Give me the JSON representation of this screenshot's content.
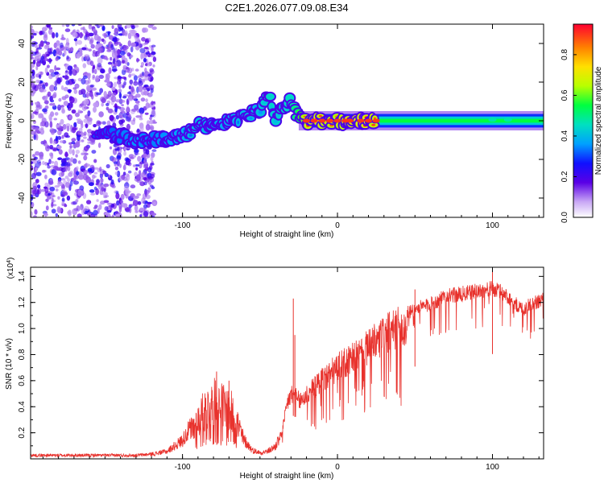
{
  "title": "C2E1.2026.077.09.08.E34",
  "colors": {
    "snr_line": "#e8322d",
    "axis": "#000000",
    "background": "#ffffff"
  },
  "chart_data": [
    {
      "type": "heatmap",
      "name": "spectrogram",
      "xlabel": "Height of straight line (km)",
      "ylabel": "Frequency (Hz)",
      "xlim": [
        -198,
        133
      ],
      "ylim": [
        -50,
        50
      ],
      "x_ticks": [
        -100,
        0,
        100
      ],
      "y_ticks": [
        -40,
        -20,
        0,
        20,
        40
      ],
      "colorbar": {
        "label": "Normalized spectral amplitude",
        "range": [
          0,
          0.95
        ],
        "ticks": [
          0.0,
          0.2,
          0.4,
          0.6,
          0.8
        ]
      },
      "ridge": {
        "x": [
          -150,
          -140,
          -130,
          -120,
          -110,
          -100,
          -90,
          -80,
          -70,
          -60,
          -50,
          -45,
          -40,
          -35,
          -30,
          -25,
          -20,
          -10,
          0,
          10,
          20,
          40,
          60,
          80,
          100,
          120,
          133
        ],
        "y": [
          -6,
          -8,
          -10,
          -10,
          -9,
          -8,
          -3,
          -2,
          0,
          2,
          6,
          14,
          2,
          6,
          10,
          2,
          0,
          0,
          0,
          0,
          0,
          0,
          0,
          0,
          0,
          0,
          0
        ],
        "amplitude": [
          0.15,
          0.2,
          0.25,
          0.2,
          0.25,
          0.3,
          0.35,
          0.3,
          0.3,
          0.35,
          0.35,
          0.45,
          0.4,
          0.4,
          0.45,
          0.6,
          0.9,
          0.9,
          0.85,
          0.95,
          0.95,
          0.6,
          0.5,
          0.5,
          0.45,
          0.5,
          0.45
        ]
      }
    },
    {
      "type": "line",
      "name": "snr",
      "xlabel": "Height of straight line (km)",
      "ylabel": "SNR (10 * v/v)",
      "scale_label": "(x10^4)",
      "scale_base": "(x10",
      "scale_exp": "4",
      "scale_close": ")",
      "xlim": [
        -198,
        133
      ],
      "ylim": [
        0,
        1.47
      ],
      "x_ticks": [
        -100,
        0,
        100
      ],
      "y_ticks": [
        0.2,
        0.4,
        0.6,
        0.8,
        1.0,
        1.2,
        1.4
      ],
      "envelope_x": [
        -198,
        -130,
        -120,
        -110,
        -100,
        -95,
        -90,
        -85,
        -80,
        -75,
        -70,
        -65,
        -60,
        -55,
        -50,
        -45,
        -40,
        -36,
        -34,
        -32,
        -30,
        -28,
        -26,
        -24,
        -20,
        -15,
        -10,
        -5,
        0,
        10,
        20,
        30,
        40,
        50,
        60,
        70,
        80,
        90,
        100,
        105,
        110,
        115,
        120,
        125,
        133
      ],
      "envelope_y": [
        0.03,
        0.03,
        0.04,
        0.06,
        0.15,
        0.25,
        0.35,
        0.45,
        0.5,
        0.48,
        0.45,
        0.35,
        0.15,
        0.07,
        0.05,
        0.06,
        0.1,
        0.22,
        0.35,
        0.5,
        0.55,
        0.55,
        0.5,
        0.5,
        0.55,
        0.6,
        0.68,
        0.72,
        0.78,
        0.85,
        0.95,
        1.05,
        1.12,
        1.18,
        1.22,
        1.28,
        1.3,
        1.32,
        1.34,
        1.32,
        1.28,
        1.22,
        1.18,
        1.22,
        1.26
      ],
      "spikes": [
        {
          "x": -78,
          "y": 0.67
        },
        {
          "x": -70,
          "y": 0.6
        },
        {
          "x": -28.5,
          "y": 1.23
        },
        {
          "x": -27.5,
          "y": 0.95
        },
        {
          "x": 50,
          "y": 1.3
        },
        {
          "x": 100,
          "y": 1.47
        }
      ]
    }
  ]
}
